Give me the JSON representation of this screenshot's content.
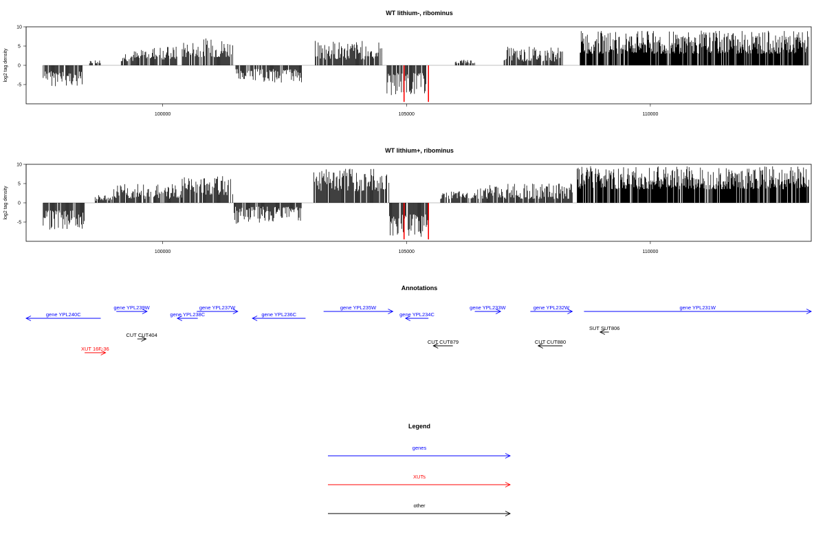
{
  "chart_data": [
    {
      "type": "bar",
      "title": "WT lithium-, ribominus",
      "ylabel": "log2 tag density",
      "xlim": [
        97200,
        113300
      ],
      "ylim": [
        -10,
        10
      ],
      "y_ticks": [
        "10",
        "5",
        "0",
        "-5"
      ],
      "x_ticks": [
        "100000",
        "105000",
        "110000"
      ],
      "grid": false,
      "highlight_color": "#ff0000",
      "regions": [
        {
          "start": 97550,
          "end": 98350,
          "sign": -1,
          "min": 1.5,
          "max": 5.5
        },
        {
          "start": 98500,
          "end": 98750,
          "sign": 1,
          "min": 0.5,
          "max": 1.5
        },
        {
          "start": 99150,
          "end": 99550,
          "sign": 1,
          "min": 1,
          "max": 4
        },
        {
          "start": 99550,
          "end": 100300,
          "sign": 1,
          "min": 1.5,
          "max": 5
        },
        {
          "start": 100400,
          "end": 101450,
          "sign": 1,
          "min": 2,
          "max": 7
        },
        {
          "start": 101500,
          "end": 102850,
          "sign": -1,
          "min": 1,
          "max": 4.5
        },
        {
          "start": 103100,
          "end": 104500,
          "sign": 1,
          "min": 1.5,
          "max": 6.5
        },
        {
          "start": 104600,
          "end": 105400,
          "sign": -1,
          "min": 2,
          "max": 8
        },
        {
          "start": 106000,
          "end": 106400,
          "sign": 1,
          "min": 0.5,
          "max": 1.5
        },
        {
          "start": 107000,
          "end": 108200,
          "sign": 1,
          "min": 1,
          "max": 5
        },
        {
          "start": 108550,
          "end": 113250,
          "sign": 1,
          "min": 3,
          "max": 9
        }
      ],
      "highlights": [
        {
          "x": 104950,
          "value": -9.5
        },
        {
          "x": 105450,
          "value": -9.5
        }
      ]
    },
    {
      "type": "bar",
      "title": "WT lithium+, ribominus",
      "ylabel": "log2 tag density",
      "xlim": [
        97200,
        113300
      ],
      "ylim": [
        -10,
        10
      ],
      "y_ticks": [
        "10",
        "5",
        "0",
        "-5"
      ],
      "x_ticks": [
        "100000",
        "105000",
        "110000"
      ],
      "grid": false,
      "highlight_color": "#ff0000",
      "regions": [
        {
          "start": 97550,
          "end": 98400,
          "sign": -1,
          "min": 2,
          "max": 7
        },
        {
          "start": 98600,
          "end": 99000,
          "sign": 1,
          "min": 0.5,
          "max": 2
        },
        {
          "start": 99000,
          "end": 100400,
          "sign": 1,
          "min": 1,
          "max": 5
        },
        {
          "start": 100400,
          "end": 101450,
          "sign": 1,
          "min": 2,
          "max": 7
        },
        {
          "start": 101450,
          "end": 102850,
          "sign": -1,
          "min": 1,
          "max": 5.5
        },
        {
          "start": 103100,
          "end": 104650,
          "sign": 1,
          "min": 3,
          "max": 9
        },
        {
          "start": 104650,
          "end": 105450,
          "sign": -1,
          "min": 3,
          "max": 9
        },
        {
          "start": 105700,
          "end": 106400,
          "sign": 1,
          "min": 1,
          "max": 3
        },
        {
          "start": 106400,
          "end": 108400,
          "sign": 1,
          "min": 1,
          "max": 5
        },
        {
          "start": 108500,
          "end": 113250,
          "sign": 1,
          "min": 3.5,
          "max": 9.5
        }
      ],
      "highlights": [
        {
          "x": 104950,
          "value": -9.5
        },
        {
          "x": 105450,
          "value": -9.5
        }
      ]
    }
  ],
  "annotations": {
    "title": "Annotations",
    "xlim": [
      97200,
      113300
    ],
    "colors": {
      "gene": "#0000ff",
      "xut": "#ff0000",
      "other": "#000000"
    },
    "features": [
      {
        "label": "gene YPL240C",
        "type": "gene",
        "start": 97200,
        "end": 98730,
        "strand": "-",
        "row": 2
      },
      {
        "label": "gene YPL239W",
        "type": "gene",
        "start": 99050,
        "end": 99680,
        "strand": "+",
        "row": 1
      },
      {
        "label": "gene YPL238C",
        "type": "gene",
        "start": 100300,
        "end": 100720,
        "strand": "-",
        "row": 2
      },
      {
        "label": "gene YPL237W",
        "type": "gene",
        "start": 100700,
        "end": 101540,
        "strand": "+",
        "row": 1
      },
      {
        "label": "gene YPL236C",
        "type": "gene",
        "start": 101840,
        "end": 102930,
        "strand": "-",
        "row": 2
      },
      {
        "label": "gene YPL235W",
        "type": "gene",
        "start": 103300,
        "end": 104720,
        "strand": "+",
        "row": 1
      },
      {
        "label": "gene YPL234C",
        "type": "gene",
        "start": 104980,
        "end": 105450,
        "strand": "-",
        "row": 2
      },
      {
        "label": "gene YPL233W",
        "type": "gene",
        "start": 106400,
        "end": 106930,
        "strand": "+",
        "row": 1
      },
      {
        "label": "gene YPL232W",
        "type": "gene",
        "start": 107540,
        "end": 108400,
        "strand": "+",
        "row": 1
      },
      {
        "label": "gene YPL231W",
        "type": "gene",
        "start": 108640,
        "end": 113300,
        "strand": "+",
        "row": 1
      },
      {
        "label": "CUT CUT404",
        "type": "other",
        "start": 99480,
        "end": 99660,
        "strand": "+",
        "row": 5
      },
      {
        "label": "XUT 16F-36",
        "type": "xut",
        "start": 98400,
        "end": 98830,
        "strand": "+",
        "row": 7
      },
      {
        "label": "CUT CUT879",
        "type": "other",
        "start": 105550,
        "end": 105950,
        "strand": "-",
        "row": 6
      },
      {
        "label": "CUT CUT880",
        "type": "other",
        "start": 107700,
        "end": 108200,
        "strand": "-",
        "row": 6
      },
      {
        "label": "SUT SUT806",
        "type": "other",
        "start": 108970,
        "end": 109150,
        "strand": "-",
        "row": 4
      }
    ]
  },
  "legend": {
    "title": "Legend",
    "items": [
      {
        "label": "genes",
        "color": "#0000ff"
      },
      {
        "label": "XUTs",
        "color": "#ff0000"
      },
      {
        "label": "other",
        "color": "#000000"
      }
    ]
  }
}
